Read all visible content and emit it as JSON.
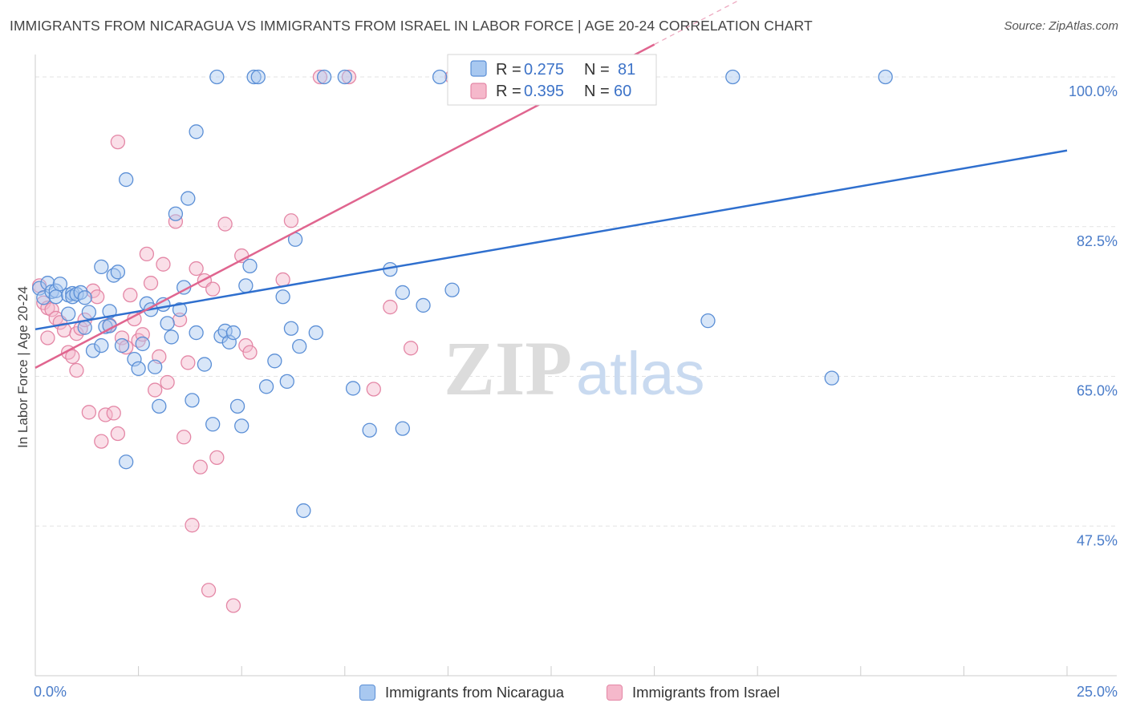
{
  "title": "IMMIGRANTS FROM NICARAGUA VS IMMIGRANTS FROM ISRAEL IN LABOR FORCE | AGE 20-24 CORRELATION CHART",
  "source": "Source: ZipAtlas.com",
  "watermark": {
    "zip": "ZIP",
    "atlas": "atlas"
  },
  "colors": {
    "blue_fill": "#a8c8f0",
    "blue_stroke": "#5b8fd6",
    "blue_line": "#2f6fce",
    "pink_fill": "#f5b8cb",
    "pink_stroke": "#e487a6",
    "pink_line": "#e0658f",
    "tick_label": "#4a7cc9",
    "grid": "#e3e3e3"
  },
  "chart_data": {
    "type": "scatter",
    "title": "IMMIGRANTS FROM NICARAGUA VS IMMIGRANTS FROM ISRAEL IN LABOR FORCE | AGE 20-24 CORRELATION CHART",
    "xlabel": "",
    "ylabel": "In Labor Force | Age 20-24",
    "xlim": [
      0,
      25
    ],
    "ylim": [
      30,
      100
    ],
    "x_unit": "%",
    "y_unit": "%",
    "x_tick_labels": [
      "0.0%",
      "25.0%"
    ],
    "y_ticks": [
      47.5,
      65.0,
      82.5,
      100.0
    ],
    "y_tick_labels": [
      "47.5%",
      "65.0%",
      "82.5%",
      "100.0%"
    ],
    "grid": "horizontal dashed",
    "legend_position": "top-center",
    "legend": [
      {
        "r_label": "R =",
        "r_value": "0.275",
        "n_label": "N =",
        "n_value": "81"
      },
      {
        "r_label": "R =",
        "r_value": "0.395",
        "n_label": "N =",
        "n_value": "60"
      }
    ],
    "series": [
      {
        "name": "Immigrants from Nicaragua",
        "color": "#a8c8f0",
        "trend": {
          "x": [
            0,
            25
          ],
          "y": [
            70.5,
            91.4
          ]
        },
        "points": [
          [
            0.1,
            75.3
          ],
          [
            0.2,
            74.2
          ],
          [
            0.3,
            75.9
          ],
          [
            0.4,
            74.9
          ],
          [
            0.5,
            75.0
          ],
          [
            0.5,
            74.3
          ],
          [
            0.6,
            75.8
          ],
          [
            0.8,
            72.3
          ],
          [
            0.8,
            74.5
          ],
          [
            0.9,
            74.7
          ],
          [
            0.9,
            74.3
          ],
          [
            1.0,
            74.6
          ],
          [
            1.1,
            74.8
          ],
          [
            1.2,
            74.2
          ],
          [
            1.2,
            70.7
          ],
          [
            1.3,
            72.5
          ],
          [
            1.4,
            68.0
          ],
          [
            1.6,
            68.6
          ],
          [
            1.6,
            77.8
          ],
          [
            1.7,
            70.8
          ],
          [
            1.8,
            72.6
          ],
          [
            1.8,
            70.9
          ],
          [
            1.9,
            76.8
          ],
          [
            2.0,
            77.2
          ],
          [
            2.1,
            68.6
          ],
          [
            2.2,
            88.0
          ],
          [
            2.2,
            55.0
          ],
          [
            2.4,
            67.0
          ],
          [
            2.5,
            65.9
          ],
          [
            2.6,
            68.8
          ],
          [
            2.7,
            73.5
          ],
          [
            2.8,
            72.8
          ],
          [
            2.9,
            66.1
          ],
          [
            3.0,
            61.5
          ],
          [
            3.1,
            73.4
          ],
          [
            3.2,
            71.2
          ],
          [
            3.3,
            69.6
          ],
          [
            3.4,
            84.0
          ],
          [
            3.5,
            72.8
          ],
          [
            3.6,
            75.4
          ],
          [
            3.7,
            85.8
          ],
          [
            3.8,
            62.2
          ],
          [
            3.9,
            93.6
          ],
          [
            3.9,
            70.1
          ],
          [
            4.1,
            66.4
          ],
          [
            4.3,
            59.4
          ],
          [
            4.4,
            100.0
          ],
          [
            4.5,
            69.7
          ],
          [
            4.6,
            70.3
          ],
          [
            4.7,
            69.0
          ],
          [
            4.8,
            70.1
          ],
          [
            4.9,
            61.5
          ],
          [
            5.0,
            59.2
          ],
          [
            5.1,
            75.6
          ],
          [
            5.2,
            77.9
          ],
          [
            5.3,
            100.0
          ],
          [
            5.4,
            100.0
          ],
          [
            5.6,
            63.8
          ],
          [
            5.8,
            66.8
          ],
          [
            6.0,
            74.3
          ],
          [
            6.1,
            64.4
          ],
          [
            6.2,
            70.6
          ],
          [
            6.3,
            81.0
          ],
          [
            6.4,
            68.5
          ],
          [
            6.5,
            49.3
          ],
          [
            6.8,
            70.1
          ],
          [
            7.0,
            100.0
          ],
          [
            7.5,
            100.0
          ],
          [
            7.7,
            63.6
          ],
          [
            8.1,
            58.7
          ],
          [
            8.6,
            77.5
          ],
          [
            8.9,
            74.8
          ],
          [
            8.9,
            58.9
          ],
          [
            9.4,
            73.3
          ],
          [
            9.8,
            100.0
          ],
          [
            10.1,
            75.1
          ],
          [
            10.3,
            100.0
          ],
          [
            16.3,
            71.5
          ],
          [
            16.9,
            100.0
          ],
          [
            19.3,
            64.8
          ],
          [
            20.6,
            100.0
          ]
        ]
      },
      {
        "name": "Immigrants from Israel",
        "color": "#f5b8cb",
        "trend": {
          "x": [
            0,
            25
          ],
          "y": [
            66.0,
            129.0
          ]
        },
        "points": [
          [
            0.1,
            75.6
          ],
          [
            0.2,
            73.6
          ],
          [
            0.3,
            73.0
          ],
          [
            0.3,
            69.5
          ],
          [
            0.4,
            72.8
          ],
          [
            0.5,
            71.8
          ],
          [
            0.6,
            71.3
          ],
          [
            0.7,
            70.4
          ],
          [
            0.8,
            67.8
          ],
          [
            0.9,
            67.3
          ],
          [
            1.0,
            70.0
          ],
          [
            1.0,
            65.7
          ],
          [
            1.1,
            70.6
          ],
          [
            1.2,
            71.6
          ],
          [
            1.3,
            60.8
          ],
          [
            1.4,
            75.0
          ],
          [
            1.5,
            74.3
          ],
          [
            1.6,
            57.4
          ],
          [
            1.7,
            60.5
          ],
          [
            1.8,
            71.0
          ],
          [
            1.9,
            60.7
          ],
          [
            2.0,
            58.3
          ],
          [
            2.0,
            92.4
          ],
          [
            2.1,
            69.5
          ],
          [
            2.2,
            68.4
          ],
          [
            2.3,
            74.5
          ],
          [
            2.4,
            71.7
          ],
          [
            2.5,
            69.2
          ],
          [
            2.6,
            69.9
          ],
          [
            2.7,
            79.3
          ],
          [
            2.8,
            75.9
          ],
          [
            2.9,
            63.4
          ],
          [
            3.0,
            67.3
          ],
          [
            3.1,
            78.1
          ],
          [
            3.2,
            64.3
          ],
          [
            3.4,
            83.1
          ],
          [
            3.5,
            71.6
          ],
          [
            3.6,
            57.9
          ],
          [
            3.7,
            66.6
          ],
          [
            3.8,
            47.6
          ],
          [
            3.9,
            77.6
          ],
          [
            4.0,
            54.4
          ],
          [
            4.1,
            76.2
          ],
          [
            4.2,
            40.0
          ],
          [
            4.3,
            75.2
          ],
          [
            4.4,
            55.5
          ],
          [
            4.6,
            82.8
          ],
          [
            4.8,
            38.2
          ],
          [
            5.0,
            79.1
          ],
          [
            5.1,
            68.6
          ],
          [
            5.2,
            67.8
          ],
          [
            6.0,
            76.3
          ],
          [
            6.2,
            83.2
          ],
          [
            6.9,
            100.0
          ],
          [
            7.6,
            100.0
          ],
          [
            8.2,
            63.5
          ],
          [
            8.6,
            73.1
          ],
          [
            9.1,
            68.3
          ],
          [
            10.1,
            100.0
          ],
          [
            12.0,
            100.0
          ]
        ]
      }
    ]
  }
}
